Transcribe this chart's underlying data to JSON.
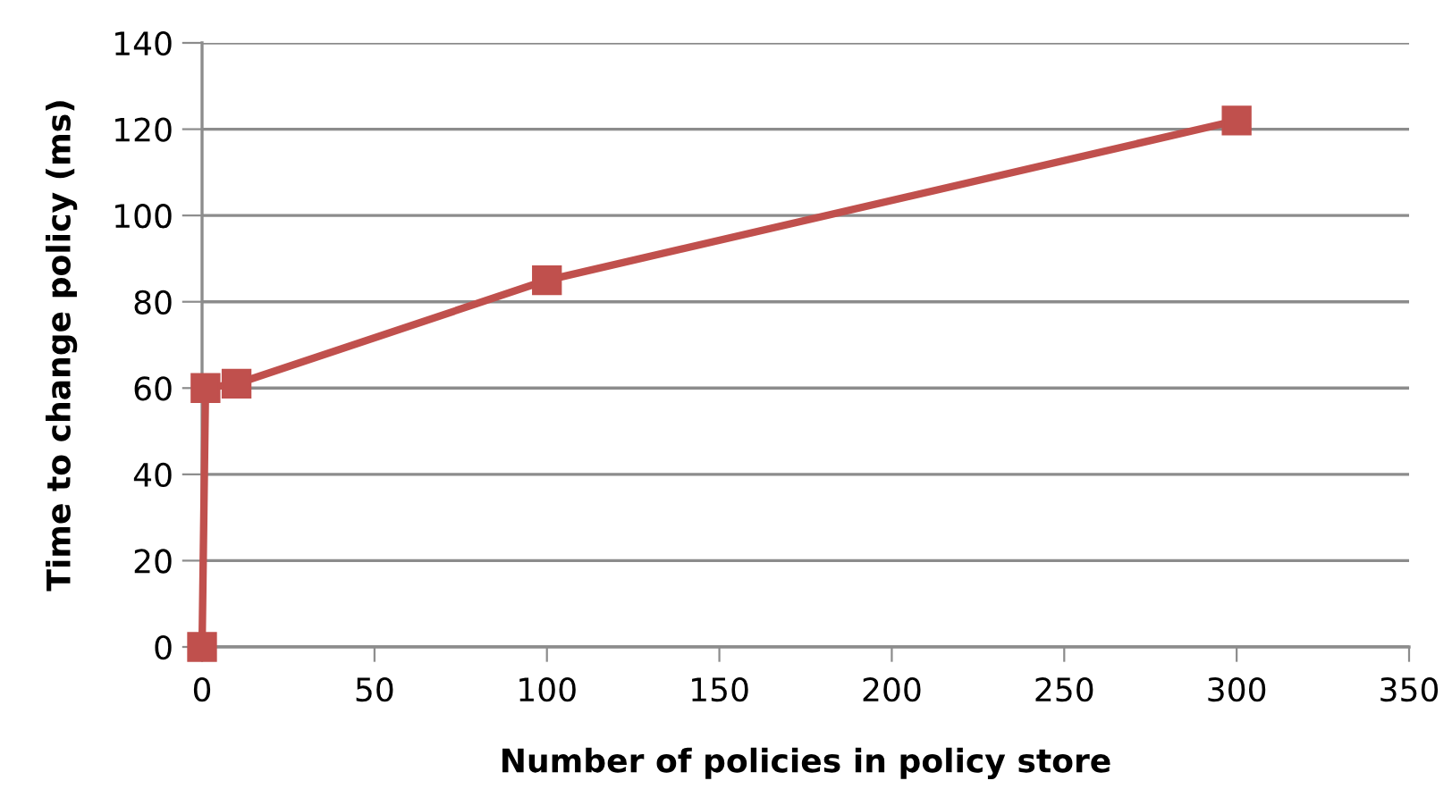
{
  "chart_data": {
    "type": "line",
    "xlabel": "Number of policies in policy store",
    "ylabel": "Time to change policy (ms)",
    "x": [
      0,
      1,
      10,
      100,
      300
    ],
    "series": [
      {
        "color": "#c0504d",
        "values": [
          0,
          60,
          61,
          85,
          122
        ]
      }
    ],
    "xlim": [
      0,
      350
    ],
    "xticks": [
      0,
      50,
      100,
      150,
      200,
      250,
      300,
      350
    ],
    "ylim": [
      0,
      140
    ],
    "yticks": [
      0,
      20,
      40,
      60,
      80,
      100,
      120,
      140
    ],
    "grid": "y",
    "marker": "square",
    "line_style": "solid"
  }
}
